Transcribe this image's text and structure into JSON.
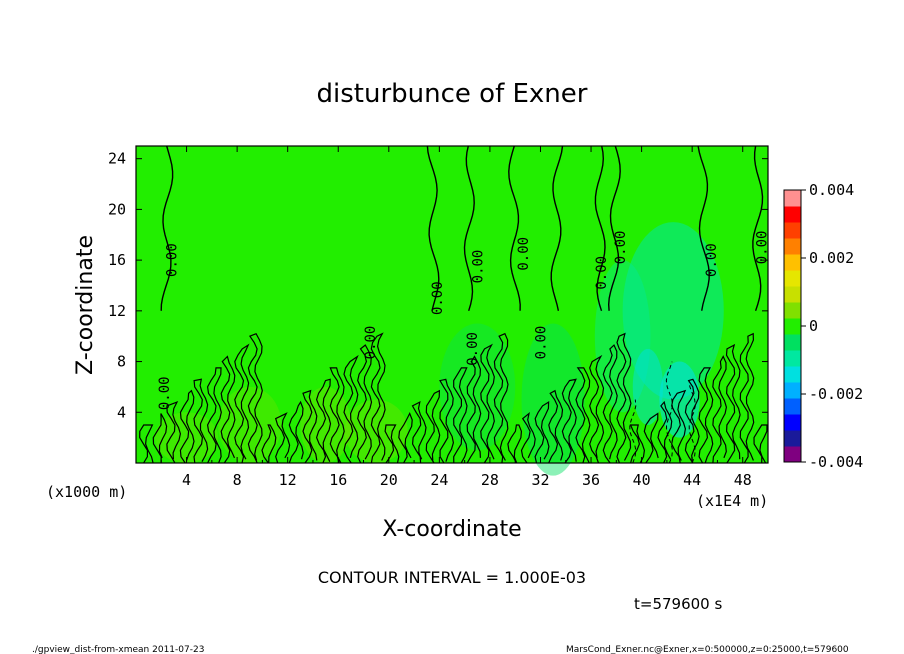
{
  "chart_data": {
    "type": "heatmap",
    "title": "disturbunce of Exner",
    "xlabel": "X-coordinate",
    "ylabel": "Z-coordinate",
    "x_unit_label": "(x1E4 m)",
    "y_unit_label": "(x1000 m)",
    "xlim": [
      0,
      50
    ],
    "ylim": [
      0,
      25
    ],
    "x_ticks": [
      4,
      8,
      12,
      16,
      20,
      24,
      28,
      32,
      36,
      40,
      44,
      48
    ],
    "y_ticks": [
      4,
      8,
      12,
      16,
      20,
      24
    ],
    "colorbar": {
      "range": [
        -0.004,
        0.004
      ],
      "tick_labels": [
        "0.004",
        "0.002",
        "0",
        "-0.002",
        "-0.004"
      ],
      "tick_values": [
        0.004,
        0.002,
        0,
        -0.002,
        -0.004
      ],
      "colors": [
        "#7f0080",
        "#1a1a9a",
        "#0000ff",
        "#0060ff",
        "#00b0ff",
        "#00e0e0",
        "#00e8a0",
        "#00e060",
        "#22ee00",
        "#80e000",
        "#c8e000",
        "#e6e600",
        "#ffc000",
        "#ff8000",
        "#ff4000",
        "#ff0000",
        "#ff9090"
      ]
    },
    "background_value": 0,
    "contour_interval_text": "CONTOUR INTERVAL = 1.000E-03",
    "contour_labels": [
      {
        "text": "0.00",
        "x": 2.8,
        "z": 16
      },
      {
        "text": "0.00",
        "x": 2.2,
        "z": 5.5
      },
      {
        "text": "0.00",
        "x": 18.5,
        "z": 9.5
      },
      {
        "text": "0.00",
        "x": 23.8,
        "z": 13
      },
      {
        "text": "0.00",
        "x": 27.0,
        "z": 15.5
      },
      {
        "text": "0.00",
        "x": 26.6,
        "z": 9
      },
      {
        "text": "0.00",
        "x": 30.6,
        "z": 16.5
      },
      {
        "text": "0.00",
        "x": 32.0,
        "z": 9.5
      },
      {
        "text": "0.00",
        "x": 36.8,
        "z": 15
      },
      {
        "text": "0.00",
        "x": 38.3,
        "z": 17
      },
      {
        "text": "0.00",
        "x": 45.5,
        "z": 16
      },
      {
        "text": "0.00",
        "x": 49.5,
        "z": 17
      }
    ]
  },
  "annotations": {
    "time": "t=579600 s",
    "footer_left": "./gpview_dist-from-xmean  2011-07-23",
    "footer_right": "MarsCond_Exner.nc@Exner,x=0:500000,z=0:25000,t=579600"
  }
}
